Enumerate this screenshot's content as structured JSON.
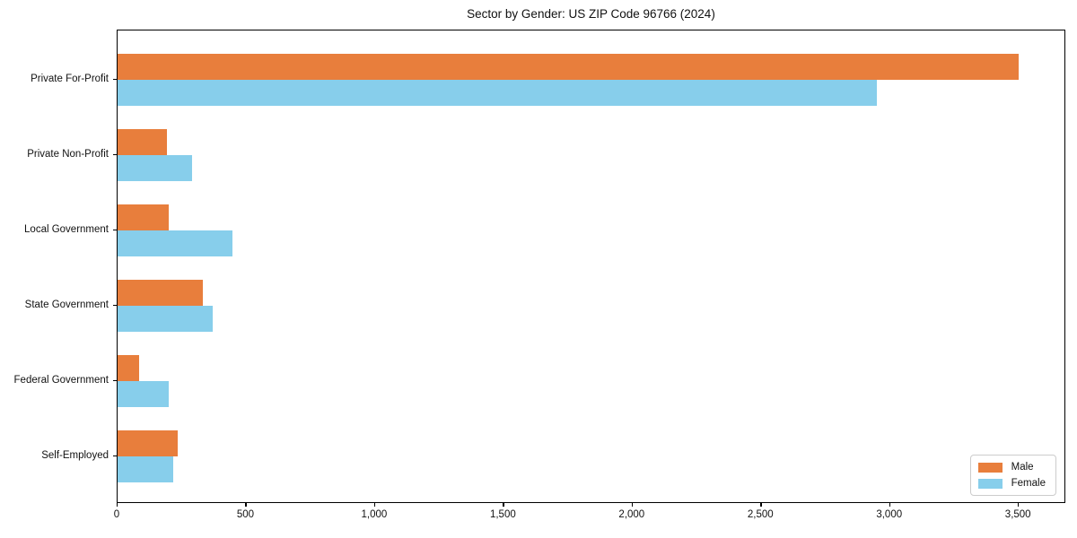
{
  "chart_data": {
    "type": "bar",
    "orientation": "horizontal",
    "title": "Sector by Gender: US ZIP Code 96766 (2024)",
    "categories": [
      "Private For-Profit",
      "Private Non-Profit",
      "Local Government",
      "State Government",
      "Federal Government",
      "Self-Employed"
    ],
    "series": [
      {
        "name": "Male",
        "color": "#E87E3C",
        "values": [
          3500,
          190,
          200,
          330,
          85,
          235
        ]
      },
      {
        "name": "Female",
        "color": "#87CEEB",
        "values": [
          2950,
          290,
          445,
          370,
          200,
          215
        ]
      }
    ],
    "xlabel": "",
    "ylabel": "",
    "xlim": [
      0,
      3675
    ],
    "x_ticks": [
      0,
      500,
      1000,
      1500,
      2000,
      2500,
      3000,
      3500
    ],
    "x_tick_labels": [
      "0",
      "500",
      "1,000",
      "1,500",
      "2,000",
      "2,500",
      "3,000",
      "3,500"
    ],
    "grid": false,
    "legend_position": "lower right",
    "frame_color": "#000000",
    "text_color": "#111111"
  }
}
